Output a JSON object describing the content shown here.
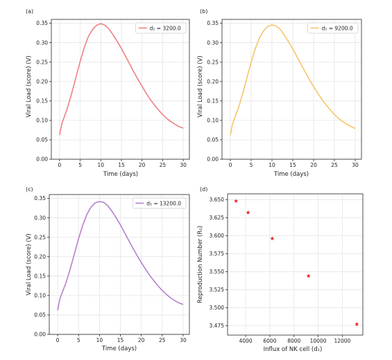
{
  "chart_data": [
    {
      "panel": "(a)",
      "type": "line",
      "xlabel": "Time (days)",
      "ylabel": "Viral Load (score) (V)",
      "xlim": [
        -2,
        31.5
      ],
      "ylim": [
        0,
        0.36
      ],
      "xticks": [
        0,
        5,
        10,
        15,
        20,
        25,
        30
      ],
      "yticks": [
        0.0,
        0.05,
        0.1,
        0.15,
        0.2,
        0.25,
        0.3,
        0.35
      ],
      "legend_position": "top-right",
      "color": "#f08080",
      "series": [
        {
          "name": "d₁ = 3200.0",
          "x": [
            0,
            0.5,
            1,
            2,
            3,
            4,
            5,
            6,
            7,
            8,
            9,
            10,
            11,
            12,
            13,
            14,
            15,
            16,
            17,
            18,
            19,
            20,
            21,
            22,
            23,
            24,
            25,
            26,
            27,
            28,
            29,
            30
          ],
          "y": [
            0.062,
            0.09,
            0.105,
            0.135,
            0.172,
            0.212,
            0.252,
            0.288,
            0.316,
            0.334,
            0.345,
            0.349,
            0.345,
            0.335,
            0.32,
            0.303,
            0.285,
            0.265,
            0.245,
            0.225,
            0.206,
            0.188,
            0.17,
            0.154,
            0.14,
            0.127,
            0.115,
            0.105,
            0.097,
            0.09,
            0.084,
            0.08
          ]
        }
      ]
    },
    {
      "panel": "(b)",
      "type": "line",
      "xlabel": "Time (days)",
      "ylabel": "Viral Load (score) (V)",
      "xlim": [
        -2,
        31.5
      ],
      "ylim": [
        0,
        0.36
      ],
      "xticks": [
        0,
        5,
        10,
        15,
        20,
        25,
        30
      ],
      "yticks": [
        0.0,
        0.05,
        0.1,
        0.15,
        0.2,
        0.25,
        0.3,
        0.35
      ],
      "legend_position": "top-right",
      "color": "#f7c56b",
      "series": [
        {
          "name": "d₁ = 9200.0",
          "x": [
            0,
            0.5,
            1,
            2,
            3,
            4,
            5,
            6,
            7,
            8,
            9,
            10,
            11,
            12,
            13,
            14,
            15,
            16,
            17,
            18,
            19,
            20,
            21,
            22,
            23,
            24,
            25,
            26,
            27,
            28,
            29,
            30
          ],
          "y": [
            0.062,
            0.09,
            0.105,
            0.134,
            0.17,
            0.21,
            0.25,
            0.285,
            0.312,
            0.331,
            0.342,
            0.346,
            0.343,
            0.334,
            0.319,
            0.302,
            0.284,
            0.264,
            0.244,
            0.224,
            0.205,
            0.187,
            0.17,
            0.154,
            0.14,
            0.127,
            0.115,
            0.105,
            0.097,
            0.09,
            0.084,
            0.079
          ]
        }
      ]
    },
    {
      "panel": "(c)",
      "type": "line",
      "xlabel": "Time (days)",
      "ylabel": "Viral Load (score) (V)",
      "xlim": [
        -2,
        31.5
      ],
      "ylim": [
        0,
        0.36
      ],
      "xticks": [
        0,
        5,
        10,
        15,
        20,
        25,
        30
      ],
      "yticks": [
        0.0,
        0.05,
        0.1,
        0.15,
        0.2,
        0.25,
        0.3,
        0.35
      ],
      "legend_position": "top-right",
      "color": "#b77fce",
      "series": [
        {
          "name": "d₁ = 13200.0",
          "x": [
            0,
            0.5,
            1,
            2,
            3,
            4,
            5,
            6,
            7,
            8,
            9,
            10,
            11,
            12,
            13,
            14,
            15,
            16,
            17,
            18,
            19,
            20,
            21,
            22,
            23,
            24,
            25,
            26,
            27,
            28,
            29,
            30
          ],
          "y": [
            0.062,
            0.09,
            0.105,
            0.133,
            0.168,
            0.207,
            0.246,
            0.281,
            0.309,
            0.328,
            0.339,
            0.342,
            0.34,
            0.331,
            0.317,
            0.3,
            0.282,
            0.262,
            0.242,
            0.222,
            0.203,
            0.185,
            0.168,
            0.152,
            0.138,
            0.125,
            0.113,
            0.103,
            0.094,
            0.087,
            0.081,
            0.077
          ]
        }
      ]
    },
    {
      "panel": "(d)",
      "type": "scatter",
      "xlabel": "Influx of NK cell  (d₁)",
      "ylabel": "Reproduction Number (R₀)",
      "xlim": [
        2500,
        13700
      ],
      "ylim": [
        3.462,
        3.658
      ],
      "xticks": [
        4000,
        6000,
        8000,
        10000,
        12000
      ],
      "yticks": [
        3.475,
        3.5,
        3.525,
        3.55,
        3.575,
        3.6,
        3.625,
        3.65
      ],
      "marker": "star",
      "color": "#e8201a",
      "series": [
        {
          "x": [
            3200,
            4200,
            6200,
            9200,
            13200
          ],
          "y": [
            3.648,
            3.632,
            3.596,
            3.544,
            3.477
          ]
        }
      ]
    }
  ]
}
